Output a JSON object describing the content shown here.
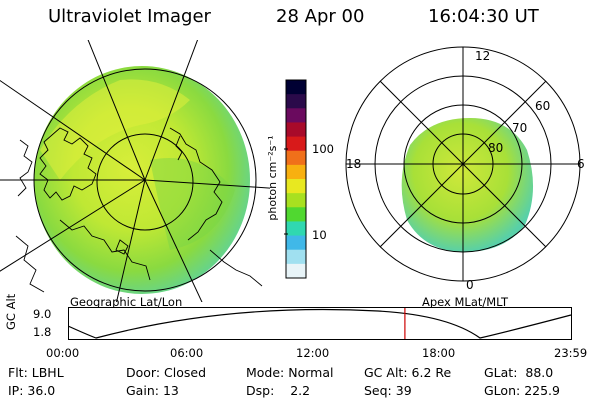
{
  "header": {
    "title": "Ultraviolet Imager",
    "date": "28 Apr 00",
    "time": "16:04:30 UT"
  },
  "colorbar": {
    "unit_label": "photon cm⁻²s⁻¹",
    "ticks": [
      "100",
      "10"
    ],
    "colors": [
      "#000033",
      "#2a0a4a",
      "#6a0a5e",
      "#a80a2a",
      "#d81a1a",
      "#f0701a",
      "#f8b010",
      "#e8e820",
      "#a8e020",
      "#50d830",
      "#30d8b0",
      "#40b8e8",
      "#a0e0f0",
      "#e8f4f8"
    ]
  },
  "geo_panel": {
    "label": "Geographic Lat/Lon"
  },
  "polar_panel": {
    "label": "Apex MLat/MLT",
    "mlt_labels": {
      "top": "12",
      "left": "18",
      "right": "6",
      "bottom": "0"
    },
    "lat_labels": [
      "60",
      "70",
      "80"
    ]
  },
  "altitude_plot": {
    "ylabel": "GC Alt",
    "y_ticks": [
      "9.0",
      "1.8"
    ],
    "x_ticks": [
      "00:00",
      "06:00",
      "12:00",
      "18:00",
      "23:59"
    ],
    "current_time_hour": 16.075
  },
  "info": {
    "row1": [
      {
        "label": "Flt:",
        "value": "LBHL"
      },
      {
        "label": "Door:",
        "value": "Closed"
      },
      {
        "label": "Mode:",
        "value": "Normal"
      },
      {
        "label": "GC Alt:",
        "value": "6.2 Re"
      },
      {
        "label": "GLat:",
        "value": "88.0"
      }
    ],
    "row2": [
      {
        "label": "IP:",
        "value": "36.0"
      },
      {
        "label": "Gain:",
        "value": "13"
      },
      {
        "label": "Dsp:",
        "value": "2.2"
      },
      {
        "label": "Seq:",
        "value": "39"
      },
      {
        "label": "GLon:",
        "value": "225.9"
      }
    ]
  }
}
